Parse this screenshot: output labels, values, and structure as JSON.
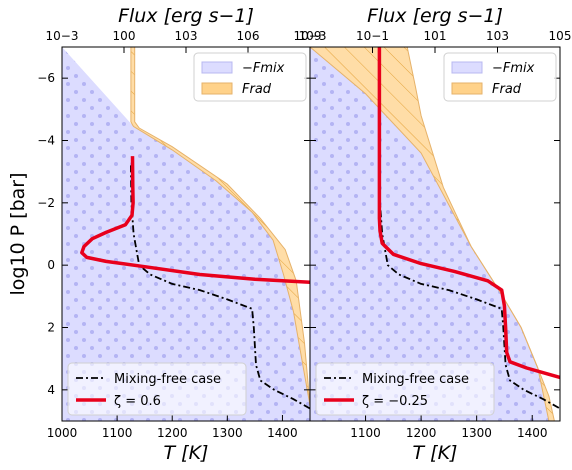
{
  "chart_data": [
    {
      "type": "area",
      "panel": "left",
      "xlabel": "T [K]",
      "xlim": [
        1000,
        1450
      ],
      "xticks": [
        "1000",
        "1100",
        "1200",
        "1300",
        "1400"
      ],
      "ylabel": "log10 P [bar]",
      "ylim": [
        5,
        -7
      ],
      "yticks": [
        "−6",
        "−4",
        "−2",
        "0",
        "2",
        "4"
      ],
      "top_label": "Flux [erg s−1]",
      "top_ticks": [
        "10−3",
        "100",
        "103",
        "106",
        "109"
      ],
      "legend_top": [
        {
          "name": "−Fmix",
          "color": "#c8c8ff"
        },
        {
          "name": "Frad",
          "color": "#ffc24d"
        }
      ],
      "legend_bottom": [
        {
          "name": "Mixing-free case",
          "color": "#000000"
        },
        {
          "name": "ζ = 0.6",
          "color": "#e8001c"
        }
      ],
      "series": [
        {
          "name": "Mixing-free case",
          "style": "dashdot",
          "color": "#000000",
          "x": [
            1125,
            1126,
            1130,
            1140,
            1160,
            1200,
            1250,
            1300,
            1345,
            1348,
            1352,
            1360,
            1385,
            1420,
            1450
          ],
          "y": [
            -3.2,
            -2,
            -1,
            0,
            0.3,
            0.6,
            0.8,
            1.1,
            1.4,
            2,
            3.2,
            3.7,
            4,
            4.3,
            4.6
          ]
        },
        {
          "name": "ζ = 0.6",
          "style": "solid",
          "color": "#e8001c",
          "x": [
            1128,
            1128.5,
            1129,
            1127,
            1115,
            1080,
            1055,
            1040,
            1036,
            1045,
            1080,
            1150,
            1250,
            1350,
            1450
          ],
          "y": [
            -3.5,
            -2.5,
            -2,
            -1.6,
            -1.3,
            -1.05,
            -0.85,
            -0.6,
            -0.4,
            -0.25,
            -0.12,
            0.05,
            0.3,
            0.45,
            0.55
          ]
        }
      ],
      "frad_band": {
        "left_x": [
          1125,
          1125,
          1125,
          1125,
          1128,
          1130,
          1200,
          1280,
          1345,
          1383,
          1402,
          1420,
          1435,
          1450
        ],
        "left_y": [
          -7,
          -6,
          -5,
          -4.6,
          -4.5,
          -4.45,
          -3.7,
          -2.7,
          -1.7,
          -0.8,
          0.3,
          1.5,
          3,
          4.5
        ],
        "right_x": [
          1132,
          1132,
          1132,
          1132,
          1140,
          1200,
          1300,
          1360,
          1405,
          1425,
          1440,
          1450
        ],
        "right_y": [
          -7,
          -6,
          -5,
          -4.6,
          -4.4,
          -3.8,
          -2.6,
          -1.5,
          -0.5,
          0.5,
          2.5,
          4.5
        ]
      },
      "fmix_region": {
        "x": [
          1000,
          1130,
          1200,
          1280,
          1345,
          1383,
          1402,
          1420,
          1435,
          1450
        ],
        "y": [
          -7,
          -4.45,
          -3.7,
          -2.7,
          -1.7,
          -0.8,
          0.3,
          1.5,
          3,
          4.5
        ]
      }
    },
    {
      "type": "area",
      "panel": "right",
      "xlabel": "T [K]",
      "xlim": [
        1000,
        1450
      ],
      "xticks": [
        "1100",
        "1200",
        "1300",
        "1400"
      ],
      "top_label": "Flux [erg s−1]",
      "top_ticks": [
        "10−3",
        "10−1",
        "101",
        "103",
        "105"
      ],
      "legend_top": [
        {
          "name": "−Fmix",
          "color": "#c8c8ff"
        },
        {
          "name": "Frad",
          "color": "#ffc24d"
        }
      ],
      "legend_bottom": [
        {
          "name": "Mixing-free case",
          "color": "#000000"
        },
        {
          "name": "ζ = −0.25",
          "color": "#e8001c"
        }
      ],
      "series": [
        {
          "name": "Mixing-free case",
          "style": "dashdot",
          "color": "#000000",
          "x": [
            1125,
            1126,
            1130,
            1140,
            1160,
            1200,
            1250,
            1300,
            1345,
            1348,
            1352,
            1360,
            1385,
            1420,
            1450
          ],
          "y": [
            -3.2,
            -2,
            -1,
            0,
            0.3,
            0.6,
            0.8,
            1.1,
            1.4,
            2,
            3.2,
            3.7,
            4,
            4.3,
            4.6
          ]
        },
        {
          "name": "ζ = −0.25",
          "style": "solid",
          "color": "#e8001c",
          "x": [
            1125,
            1125,
            1125,
            1125,
            1126,
            1130,
            1150,
            1200,
            1260,
            1320,
            1345,
            1350,
            1352,
            1354,
            1360,
            1390,
            1430,
            1450
          ],
          "y": [
            -7,
            -5,
            -3,
            -1.5,
            -1.1,
            -0.7,
            -0.35,
            -0.05,
            0.2,
            0.5,
            0.8,
            1.3,
            2,
            2.8,
            3.1,
            3.3,
            3.5,
            3.6
          ]
        }
      ],
      "frad_band": {
        "left_x": [
          1000,
          1100,
          1200,
          1290,
          1340,
          1380,
          1410,
          1430
        ],
        "left_y": [
          -7,
          -5.5,
          -3.6,
          -0.6,
          0.8,
          2,
          3.3,
          5
        ],
        "right_x": [
          1175,
          1190,
          1200,
          1240,
          1290,
          1340,
          1380,
          1410,
          1430,
          1440
        ],
        "right_y": [
          -7,
          -5.7,
          -4.8,
          -2.5,
          -0.6,
          0.8,
          2,
          3.3,
          4.2,
          5
        ]
      },
      "fmix_region": {
        "x": [
          1000,
          1100,
          1200,
          1290,
          1340,
          1380,
          1410,
          1430
        ],
        "y": [
          -7,
          -5.5,
          -3.6,
          -0.6,
          0.8,
          2,
          3.3,
          5
        ]
      }
    }
  ]
}
